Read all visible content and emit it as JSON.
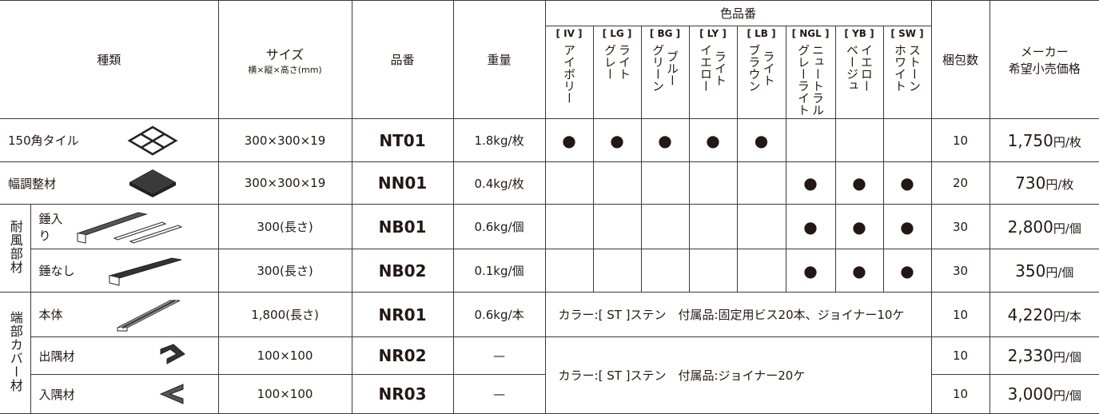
{
  "header": {
    "type": "種類",
    "size": "サイズ",
    "size_note": "横×縦×高さ(mm)",
    "code": "品番",
    "weight": "重量",
    "colors_title": "色品番",
    "colors": [
      {
        "code": "[ IV ]",
        "name": [
          "アイボリー"
        ]
      },
      {
        "code": "[ LG ]",
        "name": [
          "ライト",
          "グレー"
        ]
      },
      {
        "code": "[ BG ]",
        "name": [
          "ブルー",
          "グリーン"
        ]
      },
      {
        "code": "[ LY ]",
        "name": [
          "ライト",
          "イエロー"
        ]
      },
      {
        "code": "[ LB ]",
        "name": [
          "ライト",
          "ブラウン"
        ]
      },
      {
        "code": "[ NGL ]",
        "name": [
          "ニュートラル",
          "グレーライト"
        ]
      },
      {
        "code": "[ YB ]",
        "name": [
          "イエロー",
          "ベージュ"
        ]
      },
      {
        "code": "[ SW ]",
        "name": [
          "ストーン",
          "ホワイト"
        ]
      }
    ],
    "pack": "梱包数",
    "price": [
      "メーカー",
      "希望小売価格"
    ]
  },
  "rows": [
    {
      "name": "150角タイル",
      "size": "300×300×19",
      "code": "NT01",
      "weight": "1.8kg/枚",
      "colors": [
        "●",
        "●",
        "●",
        "●",
        "●",
        null,
        null,
        null
      ],
      "pack": "10",
      "price": "1,750",
      "unit": "円/枚"
    },
    {
      "name": "幅調整材",
      "size": "300×300×19",
      "code": "NN01",
      "weight": "0.4kg/枚",
      "colors": [
        null,
        null,
        null,
        null,
        null,
        "●",
        "●",
        "●"
      ],
      "pack": "20",
      "price": "730",
      "unit": "円/枚"
    }
  ],
  "groups": [
    {
      "label": "耐風部材",
      "rows": [
        {
          "name": "錘入り",
          "size": "300(長さ)",
          "code": "NB01",
          "weight": "0.6kg/個",
          "colors": [
            null,
            null,
            null,
            null,
            null,
            "●",
            "●",
            "●"
          ],
          "pack": "30",
          "price": "2,800",
          "unit": "円/個"
        },
        {
          "name": "錘なし",
          "size": "300(長さ)",
          "code": "NB02",
          "weight": "0.1kg/個",
          "colors": [
            null,
            null,
            null,
            null,
            null,
            "●",
            "●",
            "●"
          ],
          "pack": "30",
          "price": "350",
          "unit": "円/個"
        }
      ]
    },
    {
      "label": "端部カバー材",
      "rows": [
        {
          "name": "本体",
          "size": "1,800(長さ)",
          "code": "NR01",
          "weight": "0.6kg/本",
          "note": "カラー:[ ST ]ステン　付属品:固定用ビス20本、ジョイナー10ケ",
          "pack": "10",
          "price": "4,220",
          "unit": "円/本"
        },
        {
          "name": "出隅材",
          "size": "100×100",
          "code": "NR02",
          "weight": "—",
          "note": "カラー:[ ST ]ステン　付属品:ジョイナー20ケ",
          "pack": "10",
          "price": "2,330",
          "unit": "円/個"
        },
        {
          "name": "入隅材",
          "size": "100×100",
          "code": "NR03",
          "weight": "—",
          "pack": "10",
          "price": "3,000",
          "unit": "円/個"
        }
      ]
    }
  ]
}
